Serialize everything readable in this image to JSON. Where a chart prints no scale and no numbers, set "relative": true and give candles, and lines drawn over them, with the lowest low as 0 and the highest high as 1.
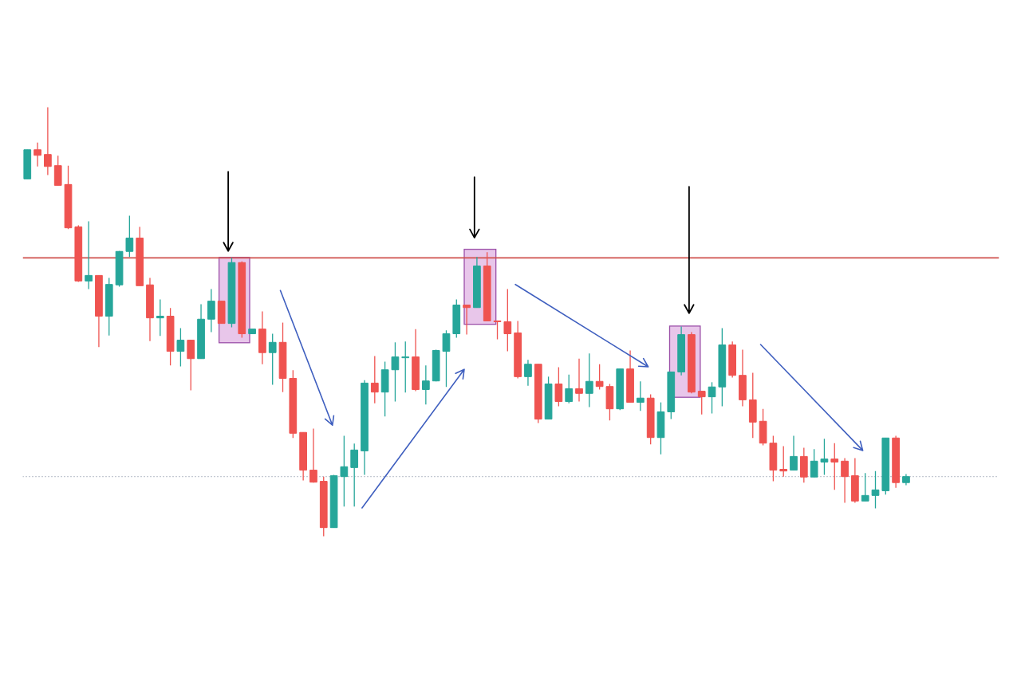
{
  "chart_data": {
    "type": "candlestick",
    "relative": true,
    "tick_labels": false,
    "categories": [
      null,
      null,
      null,
      null,
      null,
      null,
      null,
      null,
      null,
      null,
      null,
      null,
      null,
      null,
      null,
      null,
      null,
      null,
      null,
      null,
      null,
      null,
      null,
      null,
      null,
      null,
      null,
      null,
      null,
      null,
      null,
      null,
      null,
      null,
      null,
      null,
      null,
      null,
      null,
      null,
      null,
      null,
      null,
      null,
      null,
      null,
      null,
      null,
      null,
      null,
      null,
      null,
      null,
      null,
      null,
      null,
      null,
      null,
      null,
      null,
      null,
      null,
      null,
      null,
      null,
      null,
      null,
      null,
      null,
      null,
      null,
      null,
      null,
      null,
      null,
      null,
      null,
      null,
      null,
      null,
      null,
      null,
      null,
      null,
      null,
      null,
      null
    ],
    "ohlc": [
      [
        0.833,
        0.901,
        0.833,
        0.901
      ],
      [
        0.901,
        0.918,
        0.862,
        0.888
      ],
      [
        0.89,
        1,
        0.842,
        0.862
      ],
      [
        0.864,
        0.887,
        0.818,
        0.818
      ],
      [
        0.82,
        0.864,
        0.716,
        0.719
      ],
      [
        0.721,
        0.725,
        0.593,
        0.595
      ],
      [
        0.595,
        0.734,
        0.576,
        0.608
      ],
      [
        0.608,
        0.608,
        0.441,
        0.513
      ],
      [
        0.513,
        0.602,
        0.468,
        0.587
      ],
      [
        0.586,
        0.665,
        0.582,
        0.664
      ],
      [
        0.664,
        0.747,
        0.651,
        0.695
      ],
      [
        0.695,
        0.721,
        0.584,
        0.584
      ],
      [
        0.586,
        0.602,
        0.455,
        0.509
      ],
      [
        0.509,
        0.552,
        0.467,
        0.513
      ],
      [
        0.513,
        0.532,
        0.398,
        0.431
      ],
      [
        0.431,
        0.485,
        0.396,
        0.457
      ],
      [
        0.457,
        0.457,
        0.34,
        0.414
      ],
      [
        0.414,
        0.541,
        0.414,
        0.506
      ],
      [
        0.506,
        0.576,
        0.476,
        0.548
      ],
      [
        0.548,
        0.548,
        0.496,
        0.496
      ],
      [
        0.496,
        0.649,
        0.487,
        0.638
      ],
      [
        0.638,
        0.641,
        0.463,
        0.472
      ],
      [
        0.472,
        0.483,
        0.472,
        0.483
      ],
      [
        0.483,
        0.524,
        0.401,
        0.428
      ],
      [
        0.428,
        0.472,
        0.353,
        0.452
      ],
      [
        0.452,
        0.498,
        0.336,
        0.368
      ],
      [
        0.368,
        0.387,
        0.229,
        0.24
      ],
      [
        0.242,
        0.242,
        0.13,
        0.154
      ],
      [
        0.154,
        0.251,
        0.125,
        0.126
      ],
      [
        0.128,
        0.139,
        0,
        0.02
      ],
      [
        0.02,
        0.143,
        0.02,
        0.141
      ],
      [
        0.139,
        0.234,
        0.069,
        0.162
      ],
      [
        0.16,
        0.216,
        0.069,
        0.201
      ],
      [
        0.199,
        0.364,
        0.143,
        0.357
      ],
      [
        0.357,
        0.42,
        0.31,
        0.336
      ],
      [
        0.336,
        0.407,
        0.279,
        0.388
      ],
      [
        0.388,
        0.452,
        0.314,
        0.418
      ],
      [
        0.416,
        0.454,
        0.335,
        0.418
      ],
      [
        0.418,
        0.483,
        0.338,
        0.342
      ],
      [
        0.342,
        0.398,
        0.307,
        0.362
      ],
      [
        0.362,
        0.435,
        0.361,
        0.433
      ],
      [
        0.431,
        0.48,
        0.348,
        0.472
      ],
      [
        0.472,
        0.552,
        0.463,
        0.539
      ],
      [
        0.539,
        0.539,
        0.47,
        0.533
      ],
      [
        0.533,
        0.651,
        0.533,
        0.63
      ],
      [
        0.63,
        0.662,
        0.502,
        0.502
      ],
      [
        0.502,
        0.502,
        0.459,
        0.5
      ],
      [
        0.5,
        0.576,
        0.431,
        0.472
      ],
      [
        0.474,
        0.502,
        0.368,
        0.372
      ],
      [
        0.372,
        0.411,
        0.351,
        0.401
      ],
      [
        0.401,
        0.401,
        0.264,
        0.273
      ],
      [
        0.273,
        0.372,
        0.273,
        0.355
      ],
      [
        0.355,
        0.394,
        0.303,
        0.314
      ],
      [
        0.314,
        0.377,
        0.31,
        0.344
      ],
      [
        0.344,
        0.414,
        0.314,
        0.333
      ],
      [
        0.333,
        0.426,
        0.301,
        0.361
      ],
      [
        0.361,
        0.401,
        0.342,
        0.349
      ],
      [
        0.349,
        0.355,
        0.27,
        0.297
      ],
      [
        0.297,
        0.39,
        0.294,
        0.39
      ],
      [
        0.39,
        0.433,
        0.312,
        0.312
      ],
      [
        0.312,
        0.361,
        0.292,
        0.322
      ],
      [
        0.322,
        0.331,
        0.214,
        0.23
      ],
      [
        0.23,
        0.312,
        0.191,
        0.29
      ],
      [
        0.29,
        0.383,
        0.273,
        0.383
      ],
      [
        0.383,
        0.489,
        0.375,
        0.47
      ],
      [
        0.47,
        0.476,
        0.333,
        0.336
      ],
      [
        0.338,
        0.338,
        0.284,
        0.325
      ],
      [
        0.325,
        0.359,
        0.286,
        0.348
      ],
      [
        0.348,
        0.485,
        0.303,
        0.446
      ],
      [
        0.446,
        0.454,
        0.37,
        0.375
      ],
      [
        0.375,
        0.435,
        0.303,
        0.318
      ],
      [
        0.318,
        0.381,
        0.229,
        0.266
      ],
      [
        0.268,
        0.297,
        0.212,
        0.217
      ],
      [
        0.217,
        0.234,
        0.128,
        0.154
      ],
      [
        0.156,
        0.21,
        0.139,
        0.152
      ],
      [
        0.154,
        0.234,
        0.154,
        0.186
      ],
      [
        0.186,
        0.206,
        0.125,
        0.138
      ],
      [
        0.138,
        0.203,
        0.138,
        0.175
      ],
      [
        0.173,
        0.227,
        0.143,
        0.18
      ],
      [
        0.18,
        0.217,
        0.108,
        0.173
      ],
      [
        0.175,
        0.182,
        0.078,
        0.139
      ],
      [
        0.141,
        0.182,
        0.078,
        0.082
      ],
      [
        0.082,
        0.147,
        0.082,
        0.095
      ],
      [
        0.095,
        0.152,
        0.065,
        0.108
      ],
      [
        0.106,
        0.229,
        0.097,
        0.229
      ],
      [
        0.229,
        0.234,
        0.113,
        0.125
      ],
      [
        0.125,
        0.145,
        0.119,
        0.139
      ]
    ],
    "colors": [
      "#26a69a",
      "#ef5350",
      "#ef5350",
      "#ef5350",
      "#ef5350",
      "#ef5350",
      "#26a69a",
      "#ef5350",
      "#26a69a",
      "#26a69a",
      "#26a69a",
      "#ef5350",
      "#ef5350",
      "#26a69a",
      "#ef5350",
      "#26a69a",
      "#ef5350",
      "#26a69a",
      "#26a69a",
      "#ef5350",
      "#26a69a",
      "#ef5350",
      "#26a69a",
      "#ef5350",
      "#26a69a",
      "#ef5350",
      "#ef5350",
      "#ef5350",
      "#ef5350",
      "#ef5350",
      "#26a69a",
      "#26a69a",
      "#26a69a",
      "#26a69a",
      "#ef5350",
      "#26a69a",
      "#26a69a",
      "#26a69a",
      "#ef5350",
      "#26a69a",
      "#26a69a",
      "#26a69a",
      "#26a69a",
      "#ef5350",
      "#26a69a",
      "#ef5350",
      "#ef5350",
      "#ef5350",
      "#ef5350",
      "#26a69a",
      "#ef5350",
      "#26a69a",
      "#ef5350",
      "#26a69a",
      "#ef5350",
      "#26a69a",
      "#ef5350",
      "#ef5350",
      "#26a69a",
      "#ef5350",
      "#26a69a",
      "#ef5350",
      "#26a69a",
      "#26a69a",
      "#26a69a",
      "#ef5350",
      "#ef5350",
      "#26a69a",
      "#26a69a",
      "#ef5350",
      "#ef5350",
      "#ef5350",
      "#ef5350",
      "#ef5350",
      "#ef5350",
      "#26a69a",
      "#ef5350",
      "#26a69a",
      "#26a69a",
      "#ef5350",
      "#ef5350",
      "#ef5350",
      "#26a69a",
      "#26a69a",
      "#26a69a",
      "#ef5350",
      "#26a69a"
    ],
    "ref_lines": [
      {
        "axis": "y",
        "value": 0.649,
        "color": "#d0504c"
      },
      {
        "axis": "y",
        "value": 0.139,
        "color": "#8a94a6",
        "line_style": "dotted"
      }
    ]
  }
}
